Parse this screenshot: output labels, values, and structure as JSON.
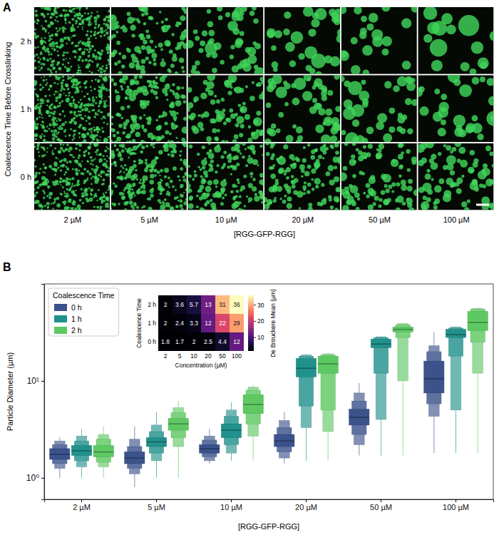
{
  "panel_a": {
    "label": "A",
    "row_title": "Coalescence Time Before Crosslinking",
    "rows": [
      "2 h",
      "1 h",
      "0 h"
    ],
    "columns": [
      "2 µM",
      "5 µM",
      "10 µM",
      "20 µM",
      "50 µM",
      "100 µM"
    ],
    "x_label": "[RGG-GFP-RGG]"
  },
  "chart_data": [
    {
      "type": "boxen",
      "label": "B",
      "categories": [
        "2 µM",
        "5 µM",
        "10 µM",
        "20 µM",
        "50 µM",
        "100 µM"
      ],
      "x_label": "[RGG-GFP-RGG]",
      "y_label": "Particle Diameter (µm)",
      "log": "y",
      "ylim": [
        0.6,
        100
      ],
      "yticks": [
        {
          "value": 1,
          "label": "10⁰"
        },
        {
          "value": 10,
          "label": "10¹"
        }
      ],
      "legend": "upper left",
      "legend_title": "Coalescence Time",
      "series": [
        {
          "name": "0 h",
          "color": "#3b528b",
          "values": [
            1.75,
            1.6,
            2.0,
            2.4,
            4.2,
            10.5
          ],
          "letter_values": [
            [
              [
                1.55,
                2.0
              ],
              [
                1.4,
                2.2
              ],
              [
                1.25,
                2.4
              ]
            ],
            [
              [
                1.4,
                1.85
              ],
              [
                1.25,
                2.1
              ],
              [
                1.1,
                2.5
              ]
            ],
            [
              [
                1.8,
                2.2
              ],
              [
                1.65,
                2.45
              ],
              [
                1.5,
                2.7
              ]
            ],
            [
              [
                2.1,
                2.8
              ],
              [
                1.85,
                3.3
              ],
              [
                1.6,
                3.9
              ]
            ],
            [
              [
                3.5,
                5.1
              ],
              [
                2.8,
                6.2
              ],
              [
                2.2,
                7.5
              ]
            ],
            [
              [
                7.5,
                16
              ],
              [
                5.8,
                20
              ],
              [
                4.3,
                23
              ]
            ]
          ],
          "extent": [
            [
              1.0,
              2.6
            ],
            [
              0.8,
              3.4
            ],
            [
              1.4,
              3.2
            ],
            [
              1.4,
              4.8
            ],
            [
              1.7,
              9.5
            ],
            [
              1.8,
              32
            ]
          ]
        },
        {
          "name": "1 h",
          "color": "#21918c",
          "values": [
            1.9,
            2.35,
            3.1,
            13.5,
            24,
            30
          ],
          "letter_values": [
            [
              [
                1.7,
                2.15
              ],
              [
                1.5,
                2.4
              ],
              [
                1.3,
                2.7
              ]
            ],
            [
              [
                2.1,
                2.6
              ],
              [
                1.8,
                3.0
              ],
              [
                1.5,
                3.5
              ]
            ],
            [
              [
                2.6,
                3.6
              ],
              [
                2.2,
                4.3
              ],
              [
                1.8,
                5.0
              ]
            ],
            [
              [
                11,
                17
              ],
              [
                5.5,
                18
              ],
              [
                3.3,
                18.5
              ]
            ],
            [
              [
                22,
                27
              ],
              [
                12,
                28
              ],
              [
                4,
                28.5
              ]
            ],
            [
              [
                28,
                34
              ],
              [
                18,
                35
              ],
              [
                5,
                36
              ]
            ]
          ],
          "extent": [
            [
              1.0,
              3.2
            ],
            [
              1.0,
              4.8
            ],
            [
              1.5,
              6.0
            ],
            [
              1.5,
              19
            ],
            [
              1.7,
              29
            ],
            [
              1.8,
              36.5
            ]
          ]
        },
        {
          "name": "2 h",
          "color": "#5ec962",
          "values": [
            1.85,
            3.6,
            5.7,
            15,
            34,
            40
          ],
          "letter_values": [
            [
              [
                1.65,
                2.15
              ],
              [
                1.45,
                2.5
              ],
              [
                1.3,
                2.8
              ]
            ],
            [
              [
                3.1,
                4.1
              ],
              [
                2.6,
                4.7
              ],
              [
                2.1,
                5.3
              ]
            ],
            [
              [
                4.6,
                7.2
              ],
              [
                3.6,
                8.0
              ],
              [
                2.7,
                8.6
              ]
            ],
            [
              [
                12,
                18
              ],
              [
                5,
                18.5
              ],
              [
                3,
                19
              ]
            ],
            [
              [
                32,
                36
              ],
              [
                28,
                38
              ],
              [
                10,
                39
              ]
            ],
            [
              [
                33,
                52
              ],
              [
                25,
                55
              ],
              [
                12,
                56
              ]
            ]
          ],
          "extent": [
            [
              1.0,
              3.4
            ],
            [
              1.0,
              6.2
            ],
            [
              1.5,
              9.0
            ],
            [
              1.5,
              19.5
            ],
            [
              1.7,
              40
            ],
            [
              1.8,
              57
            ]
          ]
        }
      ]
    },
    {
      "type": "heatmap",
      "x_label": "Concentration (µM)",
      "y_label": "Coalescence Time",
      "categories": [
        "2",
        "5",
        "10",
        "20",
        "50",
        "100"
      ],
      "rows": [
        "2 h",
        "1 h",
        "0 h"
      ],
      "cells": [
        [
          2,
          3.6,
          5.7,
          13,
          31,
          36
        ],
        [
          2,
          2.4,
          3.3,
          12,
          22,
          29
        ],
        [
          1.8,
          1.7,
          2,
          2.5,
          4.4,
          12
        ]
      ],
      "data_labels": true,
      "colorbar_label": "De Brouckere Mean (µm)",
      "colorbar_range": [
        1.7,
        36
      ],
      "colorbar_ticks": [
        10,
        20,
        30
      ]
    }
  ]
}
